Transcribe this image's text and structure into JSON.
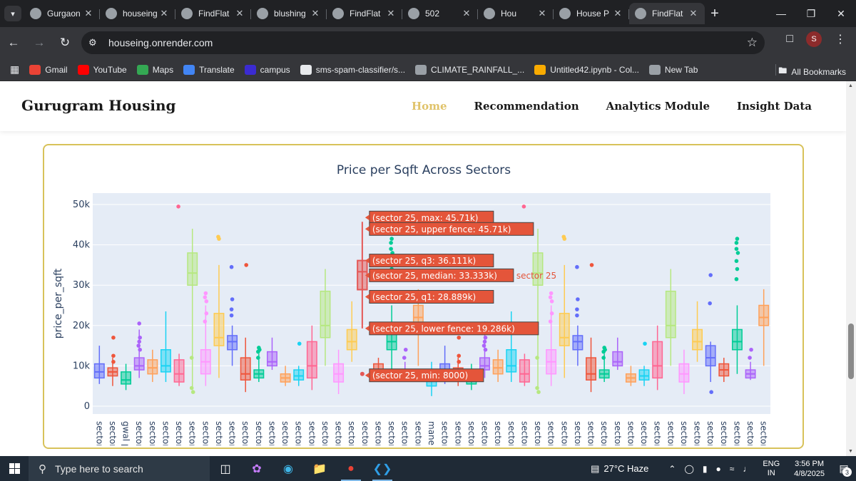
{
  "browser": {
    "tabs": [
      {
        "title": "Gurgaon",
        "icon": "chrome-globe-icon",
        "active": false
      },
      {
        "title": "houseing",
        "icon": "render-logo-icon",
        "active": false
      },
      {
        "title": "FindFlat",
        "icon": "globe-icon",
        "active": false
      },
      {
        "title": "blushing",
        "icon": "dark-circle-icon",
        "active": false
      },
      {
        "title": "FindFlat",
        "icon": "globe-icon",
        "active": false
      },
      {
        "title": "502",
        "icon": "render-logo-icon",
        "active": false
      },
      {
        "title": "Hou",
        "icon": "house-icon",
        "active": false
      },
      {
        "title": "House P",
        "icon": "chrome-globe-icon",
        "active": false
      },
      {
        "title": "FindFlat",
        "icon": "globe-icon",
        "active": true
      }
    ],
    "url": "houseing.onrender.com",
    "profile_initial": "S",
    "bookmarks": [
      {
        "label": "Gmail",
        "icon": "gmail-icon",
        "color": "#ea4335"
      },
      {
        "label": "YouTube",
        "icon": "youtube-icon",
        "color": "#ff0000"
      },
      {
        "label": "Maps",
        "icon": "maps-icon",
        "color": "#34a853"
      },
      {
        "label": "Translate",
        "icon": "translate-icon",
        "color": "#4285f4"
      },
      {
        "label": "campus",
        "icon": "campus-icon",
        "color": "#3b2bd1"
      },
      {
        "label": "sms-spam-classifier/s...",
        "icon": "github-icon",
        "color": "#e8eaed"
      },
      {
        "label": "CLIMATE_RAINFALL_...",
        "icon": "document-icon",
        "color": "#9aa0a6"
      },
      {
        "label": "Untitled42.ipynb - Col...",
        "icon": "colab-icon",
        "color": "#f9ab00"
      },
      {
        "label": "New Tab",
        "icon": "globe-icon",
        "color": "#9aa0a6"
      }
    ],
    "all_bookmarks": "All Bookmarks"
  },
  "site": {
    "brand": "Gurugram Housing",
    "nav": [
      "Home",
      "Recommendation",
      "Analytics Module",
      "Insight Data"
    ]
  },
  "chart_data": {
    "type": "box",
    "title": "Price per Sqft Across Sectors",
    "ylabel": "price_per_sqft",
    "ylim": [
      0,
      50000
    ],
    "yticks": [
      "0",
      "10k",
      "20k",
      "30k",
      "40k",
      "50k"
    ],
    "xtick_labels": [
      "sector",
      "sector",
      "gwal pa",
      "sector",
      "sector",
      "sector",
      "sector",
      "sector",
      "sector",
      "sector",
      "sector",
      "sector",
      "sector",
      "sector",
      "sector",
      "sector",
      "sector",
      "sector",
      "sector",
      "sector",
      "sector",
      "sector",
      "sector",
      "sector",
      "sector",
      "manes",
      "sector",
      "sector",
      "sector",
      "sector",
      "sector",
      "sector",
      "sector",
      "sector",
      "sector",
      "sector",
      "sector",
      "sector",
      "sector",
      "sector",
      "sector",
      "sector",
      "sector",
      "sector",
      "sector",
      "sector",
      "sector",
      "sector",
      "sector",
      "sector",
      "sector"
    ],
    "hover": {
      "sector": "sector 25",
      "labels": [
        "(sector 25, max: 45.71k)",
        "(sector 25, upper fence: 45.71k)",
        "(sector 25, q3: 36.111k)",
        "(sector 25, median: 33.333k)",
        "(sector 25, q1: 28.889k)",
        "(sector 25, lower fence: 19.286k)",
        "(sector 25, min: 8000)"
      ],
      "values": [
        45710,
        45710,
        36111,
        33333,
        28889,
        19286,
        8000
      ],
      "box_color": "#e45756"
    },
    "boxes": [
      {
        "c": "#636efa",
        "lo": 5500,
        "q1": 7000,
        "med": 8500,
        "q3": 10500,
        "hi": 15000,
        "out": []
      },
      {
        "c": "#ef553b",
        "lo": 5000,
        "q1": 7500,
        "med": 8500,
        "q3": 9500,
        "hi": 12000,
        "out": [
          17000,
          11000,
          12500
        ]
      },
      {
        "c": "#00cc96",
        "lo": 4000,
        "q1": 5500,
        "med": 6500,
        "q3": 8500,
        "hi": 10500,
        "out": []
      },
      {
        "c": "#ab63fa",
        "lo": 7000,
        "q1": 9000,
        "med": 10000,
        "q3": 12000,
        "hi": 19000,
        "out": [
          14000,
          15000,
          16000,
          17000,
          20500
        ]
      },
      {
        "c": "#ffa15a",
        "lo": 6000,
        "q1": 8000,
        "med": 9500,
        "q3": 11500,
        "hi": 14000,
        "out": []
      },
      {
        "c": "#19d3f3",
        "lo": 6000,
        "q1": 8500,
        "med": 10000,
        "q3": 14000,
        "hi": 23500,
        "out": []
      },
      {
        "c": "#ff6692",
        "lo": 5000,
        "q1": 6000,
        "med": 8000,
        "q3": 11500,
        "hi": 13000,
        "out": [
          49500
        ]
      },
      {
        "c": "#b6e880",
        "lo": 4000,
        "q1": 30000,
        "med": 33000,
        "q3": 38000,
        "hi": 44000,
        "out": [
          12000,
          4500,
          3500
        ]
      },
      {
        "c": "#ff97ff",
        "lo": 5000,
        "q1": 8000,
        "med": 11000,
        "q3": 14000,
        "hi": 25000,
        "out": [
          26000,
          27000,
          28000,
          21000,
          23000
        ]
      },
      {
        "c": "#fecb52",
        "lo": 7000,
        "q1": 15000,
        "med": 17000,
        "q3": 23000,
        "hi": 35000,
        "out": [
          41500,
          42000
        ]
      },
      {
        "c": "#636efa",
        "lo": 10000,
        "q1": 14000,
        "med": 16000,
        "q3": 17500,
        "hi": 20000,
        "out": [
          24000,
          26500,
          34500,
          22500
        ]
      },
      {
        "c": "#ef553b",
        "lo": 3500,
        "q1": 6500,
        "med": 8000,
        "q3": 12000,
        "hi": 17000,
        "out": [
          35000
        ]
      },
      {
        "c": "#00cc96",
        "lo": 6000,
        "q1": 7000,
        "med": 8000,
        "q3": 9000,
        "hi": 13000,
        "out": [
          14000,
          14500,
          13500,
          12000
        ]
      },
      {
        "c": "#ab63fa",
        "lo": 9000,
        "q1": 10000,
        "med": 11000,
        "q3": 13500,
        "hi": 17000,
        "out": []
      },
      {
        "c": "#ffa15a",
        "lo": 5000,
        "q1": 6000,
        "med": 7000,
        "q3": 8000,
        "hi": 10000,
        "out": []
      },
      {
        "c": "#19d3f3",
        "lo": 5000,
        "q1": 6500,
        "med": 7500,
        "q3": 9000,
        "hi": 10000,
        "out": [
          15500
        ]
      },
      {
        "c": "#ff6692",
        "lo": 4000,
        "q1": 7000,
        "med": 10000,
        "q3": 16000,
        "hi": 20000,
        "out": []
      },
      {
        "c": "#b6e880",
        "lo": 10000,
        "q1": 17000,
        "med": 20000,
        "q3": 28500,
        "hi": 34000,
        "out": []
      },
      {
        "c": "#ff97ff",
        "lo": 3000,
        "q1": 6000,
        "med": 8000,
        "q3": 10500,
        "hi": 14000,
        "out": []
      },
      {
        "c": "#fecb52",
        "lo": 11000,
        "q1": 14000,
        "med": 16000,
        "q3": 19000,
        "hi": 26000,
        "out": []
      },
      {
        "c": "#636efa",
        "lo": 6000,
        "q1": 10000,
        "med": 12000,
        "q3": 15000,
        "hi": 16000,
        "out": [
          3500,
          25500,
          32500
        ]
      },
      {
        "c": "#ef553b",
        "lo": 6000,
        "q1": 7500,
        "med": 9000,
        "q3": 10500,
        "hi": 12000,
        "out": []
      },
      {
        "c": "#00cc96",
        "lo": 8000,
        "q1": 14000,
        "med": 16000,
        "q3": 19000,
        "hi": 25000,
        "out": [
          41500,
          40500,
          39000,
          38000,
          36000,
          34000,
          31500
        ]
      },
      {
        "c": "#ab63fa",
        "lo": 6500,
        "q1": 7000,
        "med": 8000,
        "q3": 9000,
        "hi": 11000,
        "out": [
          12000,
          14000
        ]
      },
      {
        "c": "#ffa15a",
        "lo": 10000,
        "q1": 20000,
        "med": 22000,
        "q3": 25000,
        "hi": 29000,
        "out": []
      },
      {
        "c": "#19d3f3",
        "lo": 2500,
        "q1": 5000,
        "med": 7000,
        "q3": 8500,
        "hi": 11000,
        "out": []
      }
    ]
  },
  "taskbar": {
    "search_placeholder": "Type here to search",
    "weather": "27°C  Haze",
    "lang_top": "ENG",
    "lang_bottom": "IN",
    "time": "3:56 PM",
    "date": "4/8/2025",
    "notif_count": "3"
  }
}
